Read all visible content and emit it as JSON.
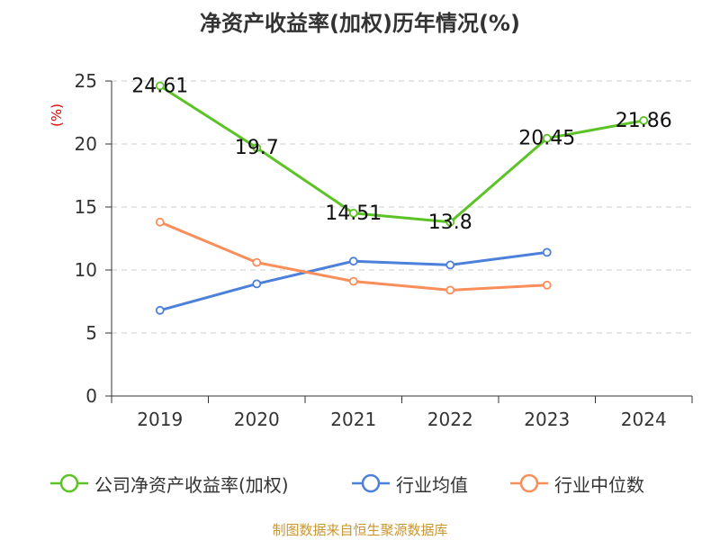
{
  "chart_data": {
    "type": "line",
    "title": "净资产收益率(加权)历年情况(%)",
    "ylabel": "(%)",
    "xlabel": "",
    "categories": [
      "2019",
      "2020",
      "2021",
      "2022",
      "2023",
      "2024"
    ],
    "ylim": [
      0,
      25
    ],
    "yticks": [
      "0",
      "5",
      "10",
      "15",
      "20",
      "25"
    ],
    "grid": true,
    "legend_position": "bottom",
    "series": [
      {
        "name": "公司净资产收益率(加权)",
        "color": "#5cc327",
        "values": [
          24.61,
          19.7,
          14.51,
          13.8,
          20.45,
          21.86
        ],
        "labels": [
          "24.61",
          "19.7",
          "14.51",
          "13.8",
          "20.45",
          "21.86"
        ]
      },
      {
        "name": "行业均值",
        "color": "#4c80da",
        "values": [
          6.8,
          8.9,
          10.7,
          10.4,
          11.4,
          null
        ]
      },
      {
        "name": "行业中位数",
        "color": "#f98e5a",
        "values": [
          13.8,
          10.6,
          9.1,
          8.4,
          8.8,
          null
        ]
      }
    ]
  },
  "source": "制图数据来自恒生聚源数据库",
  "colors": {
    "axis": "#333333",
    "grid": "#cccccc",
    "ylabel": "#e00000"
  }
}
